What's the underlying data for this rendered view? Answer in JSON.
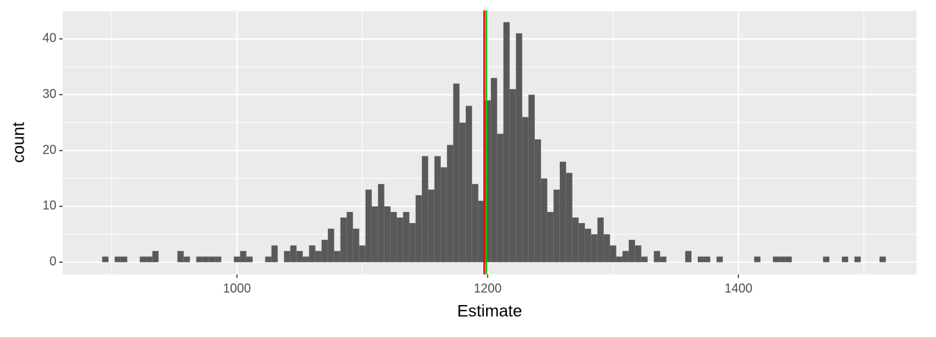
{
  "chart_data": {
    "type": "histogram",
    "x_label": "Estimate",
    "y_label": "count",
    "bins": [
      892.5,
      897.5,
      902.5,
      907.5,
      912.5,
      917.5,
      922.5,
      927.5,
      932.5,
      937.5,
      942.5,
      947.5,
      952.5,
      957.5,
      962.5,
      967.5,
      972.5,
      977.5,
      982.5,
      987.5,
      992.5,
      997.5,
      1002.5,
      1007.5,
      1012.5,
      1017.5,
      1022.5,
      1027.5,
      1032.5,
      1037.5,
      1042.5,
      1047.5,
      1052.5,
      1057.5,
      1062.5,
      1067.5,
      1072.5,
      1077.5,
      1082.5,
      1087.5,
      1092.5,
      1097.5,
      1102.5,
      1107.5,
      1112.5,
      1117.5,
      1122.5,
      1127.5,
      1132.5,
      1137.5,
      1142.5,
      1147.5,
      1152.5,
      1157.5,
      1162.5,
      1167.5,
      1172.5,
      1177.5,
      1182.5,
      1187.5,
      1192.5,
      1197.5,
      1202.5,
      1207.5,
      1212.5,
      1217.5,
      1222.5,
      1227.5,
      1232.5,
      1237.5,
      1242.5,
      1247.5,
      1252.5,
      1257.5,
      1262.5,
      1267.5,
      1272.5,
      1277.5,
      1282.5,
      1287.5,
      1292.5,
      1297.5,
      1302.5,
      1307.5,
      1312.5,
      1317.5,
      1322.5,
      1327.5,
      1332.5,
      1337.5,
      1342.5,
      1347.5,
      1352.5,
      1357.5,
      1362.5,
      1367.5,
      1372.5,
      1377.5,
      1382.5,
      1387.5,
      1392.5,
      1397.5,
      1402.5,
      1407.5,
      1412.5,
      1417.5,
      1422.5,
      1427.5,
      1432.5,
      1437.5,
      1442.5,
      1447.5,
      1452.5,
      1457.5,
      1462.5,
      1467.5,
      1472.5,
      1477.5,
      1482.5,
      1487.5,
      1492.5,
      1497.5,
      1502.5,
      1507.5,
      1512.5,
      1517.5
    ],
    "values": [
      1,
      0,
      1,
      1,
      0,
      0,
      1,
      1,
      2,
      0,
      0,
      0,
      2,
      1,
      0,
      1,
      1,
      1,
      1,
      0,
      0,
      1,
      2,
      1,
      0,
      0,
      1,
      3,
      0,
      2,
      3,
      2,
      1,
      3,
      2,
      4,
      6,
      2,
      8,
      9,
      6,
      3,
      13,
      10,
      14,
      10,
      9,
      8,
      9,
      7,
      12,
      19,
      13,
      19,
      17,
      21,
      32,
      25,
      28,
      14,
      11,
      29,
      33,
      23,
      43,
      31,
      41,
      26,
      30,
      22,
      15,
      9,
      13,
      18,
      16,
      8,
      7,
      6,
      5,
      8,
      5,
      3,
      1,
      2,
      4,
      3,
      1,
      0,
      2,
      1,
      0,
      0,
      0,
      2,
      0,
      1,
      1,
      0,
      1,
      0,
      0,
      0,
      0,
      0,
      1,
      0,
      0,
      1,
      1,
      1,
      0,
      0,
      0,
      0,
      0,
      1,
      0,
      0,
      1,
      0,
      1,
      0,
      0,
      0,
      1
    ],
    "color": "#595959",
    "reference_lines": [
      {
        "value": 1197.2,
        "color": "#ff0000"
      },
      {
        "value": 1198.9,
        "color": "#00cc00"
      }
    ],
    "xlim": [
      861,
      1542
    ],
    "ylim": [
      -2.2,
      45.1
    ],
    "xticks": [
      1000,
      1200,
      1400
    ],
    "yticks": [
      0,
      10,
      20,
      30,
      40
    ],
    "grid": true,
    "background": "#ebebeb"
  }
}
